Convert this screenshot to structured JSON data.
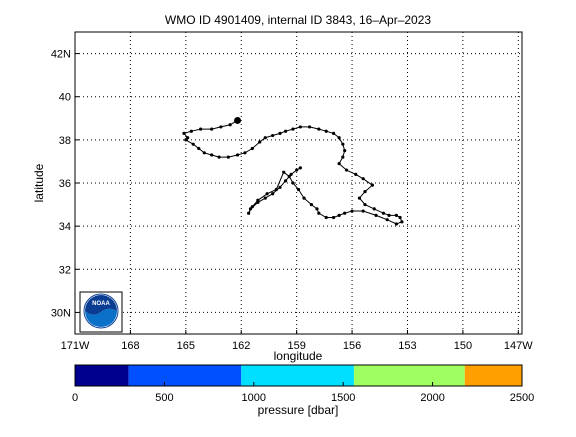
{
  "chart_data": [
    {
      "type": "scatter",
      "title": "WMO ID 4901409, internal ID 3843, 16–Apr–2023",
      "xlabel": "longitude",
      "ylabel": "latitude",
      "xlim": [
        -171,
        -146.8
      ],
      "ylim": [
        29,
        43
      ],
      "x_ticks": [
        {
          "value": -171,
          "label": "171W"
        },
        {
          "value": -168,
          "label": "168"
        },
        {
          "value": -165,
          "label": "165"
        },
        {
          "value": -162,
          "label": "162"
        },
        {
          "value": -159,
          "label": "159"
        },
        {
          "value": -156,
          "label": "156"
        },
        {
          "value": -153,
          "label": "153"
        },
        {
          "value": -150,
          "label": "150"
        },
        {
          "value": -147,
          "label": "147W"
        }
      ],
      "y_ticks": [
        {
          "value": 30,
          "label": "30N"
        },
        {
          "value": 32,
          "label": "32"
        },
        {
          "value": 34,
          "label": "34"
        },
        {
          "value": 36,
          "label": "36"
        },
        {
          "value": 38,
          "label": "38"
        },
        {
          "value": 40,
          "label": "40"
        },
        {
          "value": 42,
          "label": "42N"
        }
      ],
      "grid": true,
      "grid_style": "dotted",
      "marker_color": "#000000",
      "end_marker": {
        "x": -162.2,
        "y": 38.9
      },
      "series": [
        {
          "x": [
            -162.2,
            -162.6,
            -163.1,
            -163.6,
            -164.2,
            -164.7,
            -165.1,
            -164.9,
            -165.0,
            -164.6,
            -164.3,
            -164.0,
            -163.6,
            -163.2,
            -162.7,
            -162.2,
            -161.8,
            -161.4,
            -161.0,
            -160.7,
            -160.3,
            -159.9,
            -159.6,
            -159.2,
            -158.8,
            -158.3,
            -157.8,
            -157.4,
            -157.0,
            -156.7,
            -156.5,
            -156.4,
            -156.5,
            -156.7,
            -156.3,
            -155.8,
            -155.4,
            -154.9,
            -155.3,
            -155.6,
            -155.3,
            -154.8,
            -154.3,
            -154.0,
            -153.6,
            -153.4,
            -153.3,
            -153.6,
            -154.1,
            -154.7,
            -155.4,
            -156.0,
            -156.4,
            -156.7,
            -157.0,
            -157.4,
            -157.8,
            -157.9,
            -158.2,
            -158.6,
            -158.9,
            -159.2,
            -159.4,
            -159.7,
            -160.1,
            -160.6,
            -161.1,
            -161.4,
            -161.6,
            -161.5,
            -161.1,
            -160.7,
            -160.3,
            -159.9,
            -159.6,
            -159.3,
            -159.0,
            -158.8
          ],
          "y": [
            38.9,
            38.7,
            38.6,
            38.5,
            38.5,
            38.4,
            38.3,
            38.1,
            38.0,
            37.8,
            37.6,
            37.4,
            37.3,
            37.2,
            37.2,
            37.3,
            37.4,
            37.6,
            37.9,
            38.1,
            38.2,
            38.3,
            38.4,
            38.5,
            38.6,
            38.6,
            38.5,
            38.4,
            38.3,
            38.1,
            37.8,
            37.5,
            37.2,
            36.9,
            36.6,
            36.4,
            36.2,
            35.9,
            35.6,
            35.3,
            35.0,
            34.8,
            34.6,
            34.5,
            34.5,
            34.4,
            34.2,
            34.1,
            34.3,
            34.5,
            34.7,
            34.7,
            34.6,
            34.5,
            34.4,
            34.4,
            34.6,
            34.8,
            35.0,
            35.3,
            35.7,
            36.0,
            36.3,
            36.5,
            35.7,
            35.5,
            35.2,
            34.9,
            34.6,
            34.8,
            35.1,
            35.3,
            35.5,
            35.8,
            36.1,
            36.4,
            36.6,
            36.7
          ]
        }
      ]
    },
    {
      "type": "heatmap",
      "xlabel": "pressure [dbar]",
      "xlim": [
        0,
        2500
      ],
      "x_ticks": [
        0,
        500,
        1000,
        1500,
        2000,
        2500
      ],
      "bins": [
        {
          "from": 0,
          "to": 300,
          "color": "#00008f"
        },
        {
          "from": 300,
          "to": 930,
          "color": "#0050ff"
        },
        {
          "from": 930,
          "to": 1560,
          "color": "#00dfff"
        },
        {
          "from": 1560,
          "to": 2180,
          "color": "#9fff60"
        },
        {
          "from": 2180,
          "to": 2500,
          "color": "#ffa000"
        }
      ]
    }
  ],
  "logo": {
    "name": "noaa-logo",
    "text": "NOAA"
  }
}
